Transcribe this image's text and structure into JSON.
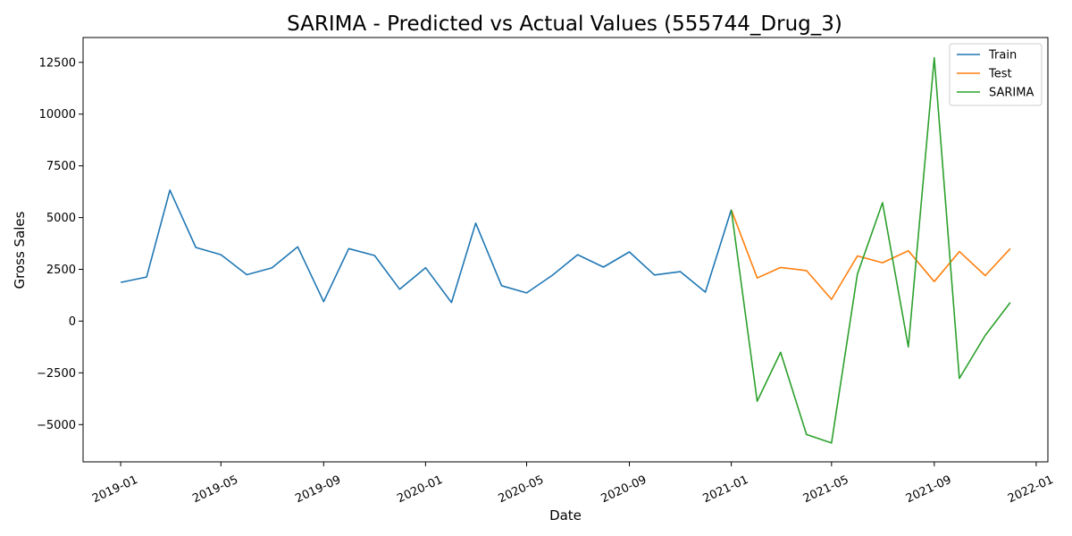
{
  "chart_data": {
    "type": "line",
    "title": "SARIMA - Predicted vs Actual Values (555744_Drug_3)",
    "xlabel": "Date",
    "ylabel": "Gross Sales",
    "xlim": [
      "2018-11-17",
      "2022-01-15"
    ],
    "ylim": [
      -6800,
      13700
    ],
    "x_ticks": [
      "2019-01",
      "2019-05",
      "2019-09",
      "2020-01",
      "2020-05",
      "2020-09",
      "2021-01",
      "2021-05",
      "2021-09",
      "2022-01"
    ],
    "y_ticks": [
      -5000,
      -2500,
      0,
      2500,
      5000,
      7500,
      10000,
      12500
    ],
    "grid": false,
    "legend_position": "top-right",
    "series": [
      {
        "name": "Train",
        "color": "#1f77b4",
        "points": [
          [
            "2019-01",
            1870
          ],
          [
            "2019-02",
            2130
          ],
          [
            "2019-03",
            6330
          ],
          [
            "2019-04",
            3560
          ],
          [
            "2019-05",
            3210
          ],
          [
            "2019-06",
            2240
          ],
          [
            "2019-07",
            2570
          ],
          [
            "2019-08",
            3590
          ],
          [
            "2019-09",
            940
          ],
          [
            "2019-10",
            3500
          ],
          [
            "2019-11",
            3170
          ],
          [
            "2019-12",
            1540
          ],
          [
            "2020-01",
            2580
          ],
          [
            "2020-02",
            900
          ],
          [
            "2020-03",
            4730
          ],
          [
            "2020-04",
            1710
          ],
          [
            "2020-05",
            1360
          ],
          [
            "2020-06",
            2220
          ],
          [
            "2020-07",
            3210
          ],
          [
            "2020-08",
            2610
          ],
          [
            "2020-09",
            3340
          ],
          [
            "2020-10",
            2230
          ],
          [
            "2020-11",
            2390
          ],
          [
            "2020-12",
            1400
          ],
          [
            "2021-01",
            5380
          ]
        ]
      },
      {
        "name": "Test",
        "color": "#ff7f0e",
        "points": [
          [
            "2021-01",
            5380
          ],
          [
            "2021-02",
            2080
          ],
          [
            "2021-03",
            2590
          ],
          [
            "2021-04",
            2440
          ],
          [
            "2021-05",
            1050
          ],
          [
            "2021-06",
            3150
          ],
          [
            "2021-07",
            2820
          ],
          [
            "2021-08",
            3400
          ],
          [
            "2021-09",
            1910
          ],
          [
            "2021-10",
            3360
          ],
          [
            "2021-11",
            2200
          ],
          [
            "2021-12",
            3500
          ]
        ]
      },
      {
        "name": "SARIMA",
        "color": "#2ca02c",
        "points": [
          [
            "2021-01",
            5380
          ],
          [
            "2021-02",
            -3870
          ],
          [
            "2021-03",
            -1510
          ],
          [
            "2021-04",
            -5480
          ],
          [
            "2021-05",
            -5890
          ],
          [
            "2021-06",
            2270
          ],
          [
            "2021-07",
            5720
          ],
          [
            "2021-08",
            -1250
          ],
          [
            "2021-09",
            12720
          ],
          [
            "2021-10",
            -2770
          ],
          [
            "2021-11",
            -690
          ],
          [
            "2021-12",
            900
          ]
        ]
      }
    ]
  }
}
